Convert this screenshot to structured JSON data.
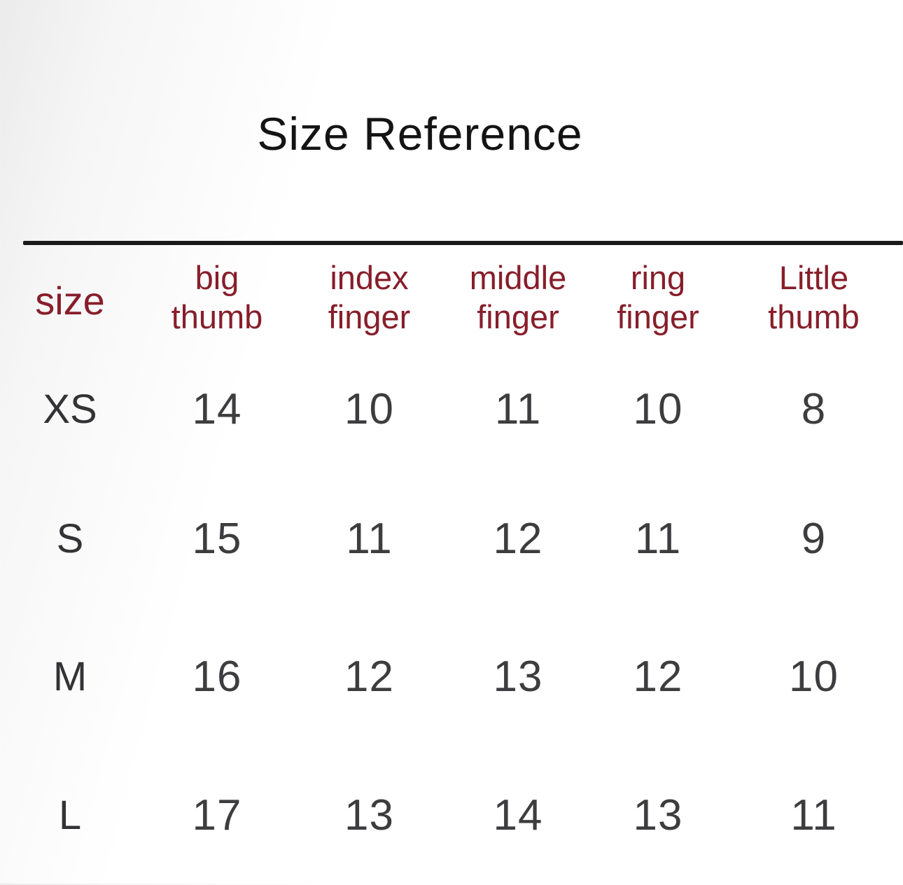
{
  "title": "Size Reference",
  "chart_data": {
    "type": "table",
    "title": "Size Reference",
    "columns": [
      "size",
      "big thumb",
      "index finger",
      "middle finger",
      "ring finger",
      "Little thumb"
    ],
    "rows": [
      [
        "XS",
        14,
        10,
        11,
        10,
        8
      ],
      [
        "S",
        15,
        11,
        12,
        11,
        9
      ],
      [
        "M",
        16,
        12,
        13,
        12,
        10
      ],
      [
        "L",
        17,
        13,
        14,
        13,
        11
      ]
    ]
  },
  "table": {
    "header": {
      "size": "size",
      "big_thumb_lines": [
        "big",
        "thumb"
      ],
      "index_finger_lines": [
        "index",
        "finger"
      ],
      "middle_finger_lines": [
        "middle",
        "finger"
      ],
      "ring_finger_lines": [
        "ring",
        "finger"
      ],
      "little_thumb_lines": [
        "Little",
        "thumb"
      ]
    },
    "rows": [
      {
        "label": "XS",
        "values": [
          "14",
          "10",
          "11",
          "10",
          "8"
        ]
      },
      {
        "label": "S",
        "values": [
          "15",
          "11",
          "12",
          "11",
          "9"
        ]
      },
      {
        "label": "M",
        "values": [
          "16",
          "12",
          "13",
          "12",
          "10"
        ]
      },
      {
        "label": "L",
        "values": [
          "17",
          "13",
          "14",
          "13",
          "11"
        ]
      }
    ]
  },
  "colors": {
    "header_text": "#871e2a",
    "body_text": "#3d3d40",
    "title_text": "#141414",
    "rule": "#1a1a1a"
  }
}
